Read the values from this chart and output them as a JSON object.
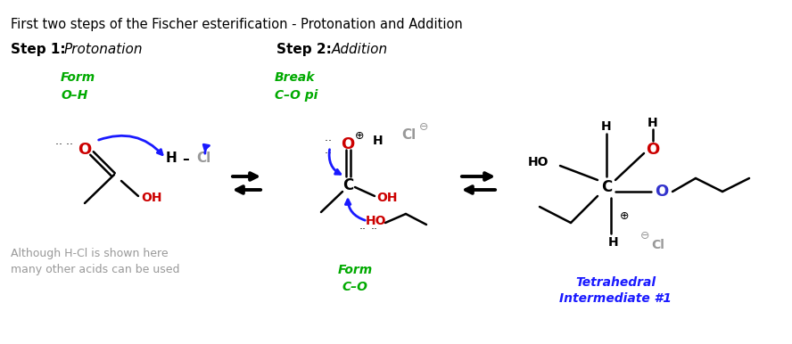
{
  "title": "First two steps of the Fischer esterification - Protonation and Addition",
  "title_color": "#000000",
  "title_fontsize": 10.5,
  "bg_color": "#ffffff",
  "step1_label": "Step 1:",
  "step1_italic": "Protonation",
  "step2_label": "Step 2:",
  "step2_italic": "Addition",
  "green_color": "#00aa00",
  "blue_color": "#1a1aff",
  "red_color": "#cc0000",
  "gray_color": "#999999",
  "black_color": "#000000"
}
